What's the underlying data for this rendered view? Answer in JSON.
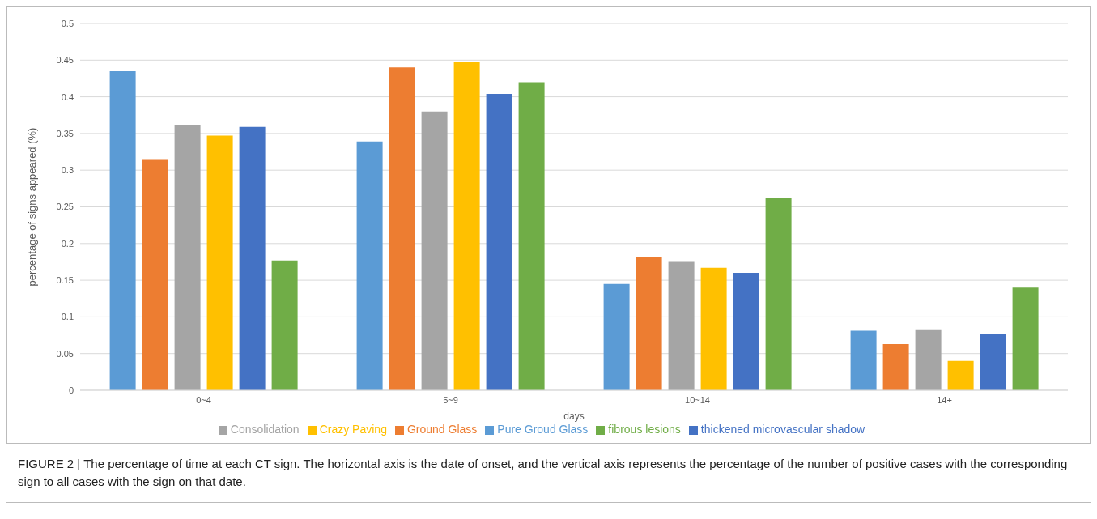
{
  "chart_data": {
    "type": "bar",
    "xlabel": "days",
    "ylabel": "percentage  of signs appeared (%)",
    "categories": [
      "0~4",
      "5~9",
      "10~14",
      "14+"
    ],
    "series": [
      {
        "name": "Pure Groud Glass",
        "color": "#5b9bd5",
        "values": [
          0.435,
          0.339,
          0.145,
          0.081
        ]
      },
      {
        "name": "Ground Glass",
        "color": "#ed7d31",
        "values": [
          0.315,
          0.44,
          0.181,
          0.063
        ]
      },
      {
        "name": "Consolidation",
        "color": "#a5a5a5",
        "values": [
          0.361,
          0.38,
          0.176,
          0.083
        ]
      },
      {
        "name": "Crazy Paving",
        "color": "#ffc000",
        "values": [
          0.347,
          0.447,
          0.167,
          0.04
        ]
      },
      {
        "name": "thickened microvascular shadow",
        "color": "#4472c4",
        "values": [
          0.359,
          0.404,
          0.16,
          0.077
        ]
      },
      {
        "name": "fibrous lesions",
        "color": "#70ad47",
        "values": [
          0.177,
          0.42,
          0.262,
          0.14
        ]
      }
    ],
    "ylim": [
      0,
      0.5
    ],
    "yticks": [
      0,
      0.05,
      0.1,
      0.15,
      0.2,
      0.25,
      0.3,
      0.35,
      0.4,
      0.45,
      0.5
    ],
    "grid": "y",
    "legend": "bottom",
    "annotations": [
      "FIGURE 2 | The percentage of time at each CT sign. The horizontal axis is the date of onset, and the vertical axis represents the percentage of the number of positive cases with the corresponding sign to all cases with the sign on that date."
    ]
  }
}
